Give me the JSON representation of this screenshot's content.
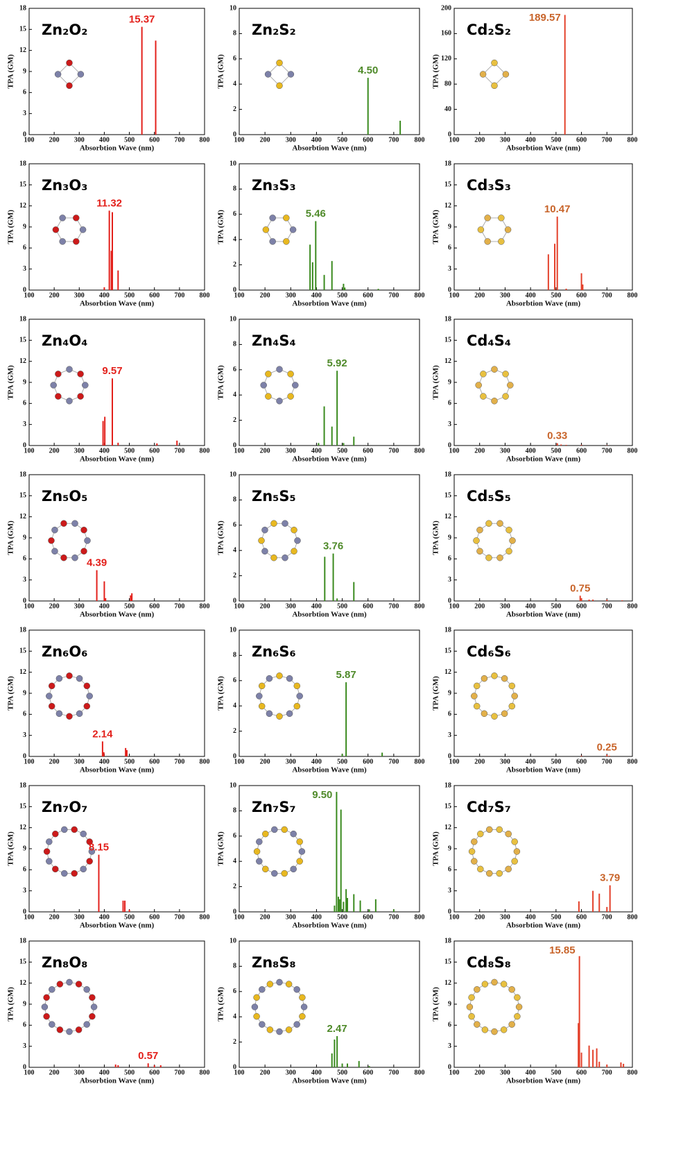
{
  "chart_data": [
    {
      "type": "stem",
      "title": "Zn₂O₂",
      "x": [
        550,
        605
      ],
      "values": [
        15.37,
        13.4
      ],
      "value_labels": [
        "15.37",
        null
      ],
      "color": "#e3201b",
      "label_color": "#e3201b",
      "xlim": [
        100,
        800
      ],
      "xticks": [
        100,
        200,
        300,
        400,
        500,
        600,
        700,
        800
      ],
      "ylim": [
        0,
        18
      ],
      "yticks": [
        0,
        3,
        6,
        9,
        12,
        15,
        18
      ],
      "xlabel": "Absorbtion Wave (nm)",
      "ylabel": "TPA (GM)"
    },
    {
      "type": "stem",
      "title": "Zn₂S₂",
      "x": [
        600,
        725
      ],
      "values": [
        4.5,
        1.1
      ],
      "value_labels": [
        "4.50",
        null
      ],
      "color": "#3a8a1e",
      "label_color": "#4f8a2a",
      "xlim": [
        100,
        800
      ],
      "xticks": [
        100,
        200,
        300,
        400,
        500,
        600,
        700,
        800
      ],
      "ylim": [
        0,
        10
      ],
      "yticks": [
        0,
        2,
        4,
        6,
        8,
        10
      ],
      "xlabel": "Absorbtion Wave (nm)",
      "ylabel": "TPA (GM)"
    },
    {
      "type": "stem",
      "title": "Cd₂S₂",
      "x": [
        535
      ],
      "values": [
        189.57
      ],
      "value_labels": [
        "189.57"
      ],
      "color": "#e3402a",
      "label_color": "#c8642a",
      "xlim": [
        100,
        800
      ],
      "xticks": [
        100,
        200,
        300,
        400,
        500,
        600,
        700,
        800
      ],
      "ylim": [
        0,
        200
      ],
      "yticks": [
        0,
        40,
        80,
        120,
        160,
        200
      ],
      "xlabel": "Absorbtion Wave (nm)",
      "ylabel": "TPA (GM)"
    },
    {
      "type": "stem",
      "title": "Zn₃O₃",
      "x": [
        400,
        420,
        428,
        432,
        455
      ],
      "values": [
        0.4,
        11.32,
        5.6,
        11.1,
        2.8
      ],
      "value_labels": [
        null,
        "11.32",
        null,
        null,
        null
      ],
      "color": "#e3201b",
      "label_color": "#e3201b",
      "xlim": [
        100,
        800
      ],
      "xticks": [
        100,
        200,
        300,
        400,
        500,
        600,
        700,
        800
      ],
      "ylim": [
        0,
        18
      ],
      "yticks": [
        0,
        3,
        6,
        9,
        12,
        15,
        18
      ],
      "xlabel": "Absorbtion Wave (nm)",
      "ylabel": "TPA (GM)"
    },
    {
      "type": "stem",
      "title": "Zn₃S₃",
      "x": [
        375,
        385,
        397,
        430,
        460,
        505,
        510,
        640
      ],
      "values": [
        3.6,
        2.2,
        5.46,
        1.2,
        2.3,
        0.5,
        0.2,
        0.1
      ],
      "value_labels": [
        null,
        null,
        "5.46",
        null,
        null,
        null,
        null,
        null
      ],
      "color": "#3a8a1e",
      "label_color": "#4f8a2a",
      "xlim": [
        100,
        800
      ],
      "xticks": [
        100,
        200,
        300,
        400,
        500,
        600,
        700,
        800
      ],
      "ylim": [
        0,
        10
      ],
      "yticks": [
        0,
        2,
        4,
        6,
        8,
        10
      ],
      "xlabel": "Absorbtion Wave (nm)",
      "ylabel": "TPA (GM)"
    },
    {
      "type": "stem",
      "title": "Cd₃S₃",
      "x": [
        470,
        495,
        505,
        540,
        600,
        605
      ],
      "values": [
        5.1,
        6.6,
        10.47,
        0.2,
        2.4,
        0.8
      ],
      "value_labels": [
        null,
        null,
        "10.47",
        null,
        null,
        null
      ],
      "color": "#e3402a",
      "label_color": "#c8642a",
      "xlim": [
        100,
        800
      ],
      "xticks": [
        100,
        200,
        300,
        400,
        500,
        600,
        700,
        800
      ],
      "ylim": [
        0,
        18
      ],
      "yticks": [
        0,
        3,
        6,
        9,
        12,
        15,
        18
      ],
      "xlabel": "Absorbtion Wave (nm)",
      "ylabel": "TPA (GM)"
    },
    {
      "type": "stem",
      "title": "Zn₄O₄",
      "x": [
        395,
        402,
        432,
        455,
        610,
        690
      ],
      "values": [
        3.5,
        4.1,
        9.57,
        0.4,
        0.3,
        0.7
      ],
      "value_labels": [
        null,
        null,
        "9.57",
        null,
        null,
        null
      ],
      "color": "#e3201b",
      "label_color": "#e3201b",
      "xlim": [
        100,
        800
      ],
      "xticks": [
        100,
        200,
        300,
        400,
        500,
        600,
        700,
        800
      ],
      "ylim": [
        0,
        18
      ],
      "yticks": [
        0,
        3,
        6,
        9,
        12,
        15,
        18
      ],
      "xlabel": "Absorbtion Wave (nm)",
      "ylabel": "TPA (GM)"
    },
    {
      "type": "stem",
      "title": "Zn₄S₄",
      "x": [
        408,
        430,
        460,
        480,
        505,
        545
      ],
      "values": [
        0.2,
        3.1,
        1.5,
        5.92,
        0.2,
        0.7
      ],
      "value_labels": [
        null,
        null,
        null,
        "5.92",
        null,
        null
      ],
      "color": "#3a8a1e",
      "label_color": "#4f8a2a",
      "xlim": [
        100,
        800
      ],
      "xticks": [
        100,
        200,
        300,
        400,
        500,
        600,
        700,
        800
      ],
      "ylim": [
        0,
        10
      ],
      "yticks": [
        0,
        2,
        4,
        6,
        8,
        10
      ],
      "xlabel": "Absorbtion Wave (nm)",
      "ylabel": "TPA (GM)"
    },
    {
      "type": "stem",
      "title": "Cd₄S₄",
      "x": [
        505,
        520,
        540,
        600,
        700
      ],
      "values": [
        0.33,
        0.15,
        0.1,
        0.1,
        0.05
      ],
      "value_labels": [
        "0.33",
        null,
        null,
        null,
        null
      ],
      "color": "#e3402a",
      "label_color": "#c8642a",
      "xlim": [
        100,
        800
      ],
      "xticks": [
        100,
        200,
        300,
        400,
        500,
        600,
        700,
        800
      ],
      "ylim": [
        0,
        18
      ],
      "yticks": [
        0,
        3,
        6,
        9,
        12,
        15,
        18
      ],
      "xlabel": "Absorbtion Wave (nm)",
      "ylabel": "TPA (GM)"
    },
    {
      "type": "stem",
      "title": "Zn₅O₅",
      "x": [
        370,
        400,
        405,
        505,
        510
      ],
      "values": [
        4.39,
        2.8,
        0.4,
        0.8,
        1.1
      ],
      "value_labels": [
        "4.39",
        null,
        null,
        null,
        null
      ],
      "color": "#e3201b",
      "label_color": "#e3201b",
      "xlim": [
        100,
        800
      ],
      "xticks": [
        100,
        200,
        300,
        400,
        500,
        600,
        700,
        800
      ],
      "ylim": [
        0,
        18
      ],
      "yticks": [
        0,
        3,
        6,
        9,
        12,
        15,
        18
      ],
      "xlabel": "Absorbtion Wave (nm)",
      "ylabel": "TPA (GM)"
    },
    {
      "type": "stem",
      "title": "Zn₅S₅",
      "x": [
        432,
        465,
        480,
        545
      ],
      "values": [
        3.5,
        3.76,
        0.2,
        1.5
      ],
      "value_labels": [
        null,
        "3.76",
        null,
        null
      ],
      "color": "#3a8a1e",
      "label_color": "#4f8a2a",
      "xlim": [
        100,
        800
      ],
      "xticks": [
        100,
        200,
        300,
        400,
        500,
        600,
        700,
        800
      ],
      "ylim": [
        0,
        10
      ],
      "yticks": [
        0,
        2,
        4,
        6,
        8,
        10
      ],
      "xlabel": "Absorbtion Wave (nm)",
      "ylabel": "TPA (GM)"
    },
    {
      "type": "stem",
      "title": "Cd₅S₅",
      "x": [
        595,
        600,
        630,
        645,
        700,
        760
      ],
      "values": [
        0.75,
        0.4,
        0.2,
        0.2,
        0.2,
        0.1
      ],
      "value_labels": [
        "0.75",
        null,
        null,
        null,
        null,
        null
      ],
      "color": "#e3402a",
      "label_color": "#c8642a",
      "xlim": [
        100,
        800
      ],
      "xticks": [
        100,
        200,
        300,
        400,
        500,
        600,
        700,
        800
      ],
      "ylim": [
        0,
        18
      ],
      "yticks": [
        0,
        3,
        6,
        9,
        12,
        15,
        18
      ],
      "xlabel": "Absorbtion Wave (nm)",
      "ylabel": "TPA (GM)"
    },
    {
      "type": "stem",
      "title": "Zn₆O₆",
      "x": [
        393,
        398,
        485,
        490
      ],
      "values": [
        2.14,
        0.6,
        1.2,
        0.9
      ],
      "value_labels": [
        "2.14",
        null,
        null,
        null
      ],
      "color": "#e3201b",
      "label_color": "#e3201b",
      "xlim": [
        100,
        800
      ],
      "xticks": [
        100,
        200,
        300,
        400,
        500,
        600,
        700,
        800
      ],
      "ylim": [
        0,
        18
      ],
      "yticks": [
        0,
        3,
        6,
        9,
        12,
        15,
        18
      ],
      "xlabel": "Absorbtion Wave (nm)",
      "ylabel": "TPA (GM)"
    },
    {
      "type": "stem",
      "title": "Zn₆S₆",
      "x": [
        500,
        515,
        655
      ],
      "values": [
        0.2,
        5.87,
        0.3
      ],
      "value_labels": [
        null,
        "5.87",
        null
      ],
      "color": "#3a8a1e",
      "label_color": "#4f8a2a",
      "xlim": [
        100,
        800
      ],
      "xticks": [
        100,
        200,
        300,
        400,
        500,
        600,
        700,
        800
      ],
      "ylim": [
        0,
        10
      ],
      "yticks": [
        0,
        2,
        4,
        6,
        8,
        10
      ],
      "xlabel": "Absorbtion Wave (nm)",
      "ylabel": "TPA (GM)"
    },
    {
      "type": "stem",
      "title": "Cd₆S₆",
      "x": [
        600,
        700,
        710
      ],
      "values": [
        0.1,
        0.25,
        0.1
      ],
      "value_labels": [
        null,
        "0.25",
        null
      ],
      "color": "#e3402a",
      "label_color": "#c8642a",
      "xlim": [
        100,
        800
      ],
      "xticks": [
        100,
        200,
        300,
        400,
        500,
        600,
        700,
        800
      ],
      "ylim": [
        0,
        18
      ],
      "yticks": [
        0,
        3,
        6,
        9,
        12,
        15,
        18
      ],
      "xlabel": "Absorbtion Wave (nm)",
      "ylabel": "TPA (GM)"
    },
    {
      "type": "stem",
      "title": "Zn₇O₇",
      "x": [
        378,
        475,
        482,
        500
      ],
      "values": [
        8.15,
        1.6,
        1.6,
        0.3
      ],
      "value_labels": [
        "8.15",
        null,
        null,
        null
      ],
      "color": "#e3201b",
      "label_color": "#e3201b",
      "xlim": [
        100,
        800
      ],
      "xticks": [
        100,
        200,
        300,
        400,
        500,
        600,
        700,
        800
      ],
      "ylim": [
        0,
        18
      ],
      "yticks": [
        0,
        3,
        6,
        9,
        12,
        15,
        18
      ],
      "xlabel": "Absorbtion Wave (nm)",
      "ylabel": "TPA (GM)"
    },
    {
      "type": "stem",
      "title": "Zn₇S₇",
      "x": [
        470,
        478,
        485,
        490,
        495,
        505,
        515,
        520,
        545,
        570,
        605,
        630,
        700
      ],
      "values": [
        0.5,
        9.5,
        1.2,
        1.0,
        8.1,
        0.8,
        1.8,
        1.1,
        1.4,
        0.9,
        0.2,
        1.0,
        0.2
      ],
      "value_labels": [
        null,
        "9.50",
        null,
        null,
        null,
        null,
        null,
        null,
        null,
        null,
        null,
        null,
        null
      ],
      "color": "#3a8a1e",
      "label_color": "#4f8a2a",
      "xlim": [
        100,
        800
      ],
      "xticks": [
        100,
        200,
        300,
        400,
        500,
        600,
        700,
        800
      ],
      "ylim": [
        0,
        10
      ],
      "yticks": [
        0,
        2,
        4,
        6,
        8,
        10
      ],
      "xlabel": "Absorbtion Wave (nm)",
      "ylabel": "TPA (GM)"
    },
    {
      "type": "stem",
      "title": "Cd₇S₇",
      "x": [
        590,
        645,
        670,
        700,
        712
      ],
      "values": [
        1.5,
        3.0,
        2.6,
        0.7,
        3.79
      ],
      "value_labels": [
        null,
        null,
        null,
        null,
        "3.79"
      ],
      "color": "#e3402a",
      "label_color": "#c8642a",
      "xlim": [
        100,
        800
      ],
      "xticks": [
        100,
        200,
        300,
        400,
        500,
        600,
        700,
        800
      ],
      "ylim": [
        0,
        18
      ],
      "yticks": [
        0,
        3,
        6,
        9,
        12,
        15,
        18
      ],
      "xlabel": "Absorbtion Wave (nm)",
      "ylabel": "TPA (GM)"
    },
    {
      "type": "stem",
      "title": "Zn₈O₈",
      "x": [
        445,
        455,
        575,
        600,
        625
      ],
      "values": [
        0.4,
        0.3,
        0.57,
        0.3,
        0.3
      ],
      "value_labels": [
        null,
        null,
        "0.57",
        null,
        null
      ],
      "color": "#e3201b",
      "label_color": "#e3201b",
      "xlim": [
        100,
        800
      ],
      "xticks": [
        100,
        200,
        300,
        400,
        500,
        600,
        700,
        800
      ],
      "ylim": [
        0,
        18
      ],
      "yticks": [
        0,
        3,
        6,
        9,
        12,
        15,
        18
      ],
      "xlabel": "Absorbtion Wave (nm)",
      "ylabel": "TPA (GM)"
    },
    {
      "type": "stem",
      "title": "Zn₈S₈",
      "x": [
        460,
        470,
        480,
        500,
        520,
        565,
        605
      ],
      "values": [
        1.1,
        2.2,
        2.47,
        0.3,
        0.3,
        0.5,
        0.1
      ],
      "value_labels": [
        null,
        null,
        "2.47",
        null,
        null,
        null,
        null
      ],
      "color": "#3a8a1e",
      "label_color": "#4f8a2a",
      "xlim": [
        100,
        800
      ],
      "xticks": [
        100,
        200,
        300,
        400,
        500,
        600,
        700,
        800
      ],
      "ylim": [
        0,
        10
      ],
      "yticks": [
        0,
        2,
        4,
        6,
        8,
        10
      ],
      "xlabel": "Absorbtion Wave (nm)",
      "ylabel": "TPA (GM)"
    },
    {
      "type": "stem",
      "title": "Cd₈S₈",
      "x": [
        588,
        592,
        600,
        630,
        645,
        660,
        670,
        700,
        755,
        765
      ],
      "values": [
        6.3,
        15.85,
        2.1,
        3.1,
        2.5,
        2.7,
        0.8,
        0.4,
        0.7,
        0.5
      ],
      "value_labels": [
        null,
        "15.85",
        null,
        null,
        null,
        null,
        null,
        null,
        null,
        null
      ],
      "color": "#e3402a",
      "label_color": "#c8642a",
      "xlim": [
        100,
        800
      ],
      "xticks": [
        100,
        200,
        300,
        400,
        500,
        600,
        700,
        800
      ],
      "ylim": [
        0,
        18
      ],
      "yticks": [
        0,
        3,
        6,
        9,
        12,
        15,
        18
      ],
      "xlabel": "Absorbtion Wave (nm)",
      "ylabel": "TPA (GM)"
    }
  ]
}
